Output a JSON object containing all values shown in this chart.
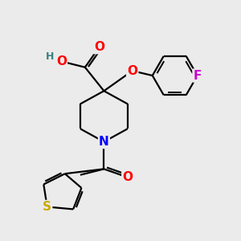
{
  "background_color": "#ebebeb",
  "atom_colors": {
    "O": "#ff0000",
    "N": "#0000ff",
    "S": "#ccaa00",
    "F": "#cc00cc",
    "H": "#3a8080",
    "C": "#000000"
  },
  "bond_color": "#000000",
  "bond_width": 1.6,
  "font_size_atoms": 11,
  "font_size_small": 9
}
